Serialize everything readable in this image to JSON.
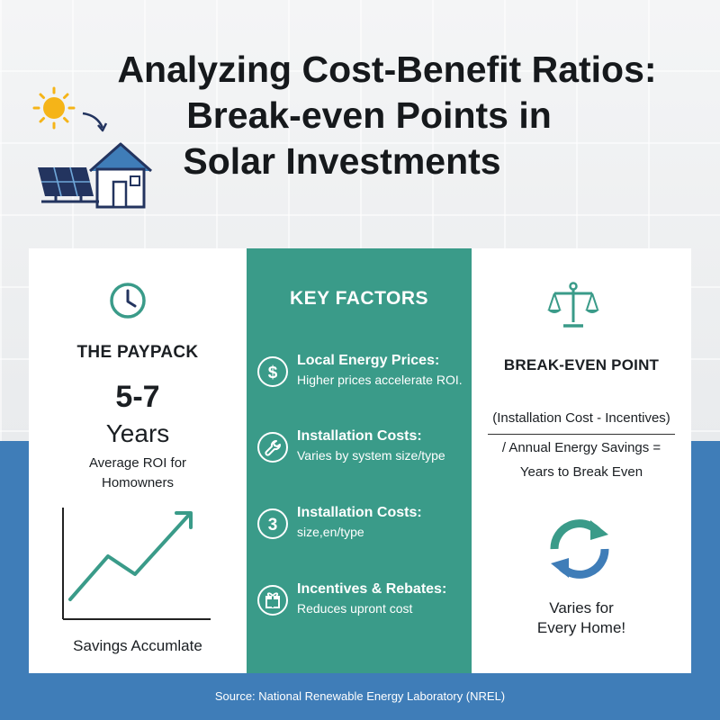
{
  "title": {
    "line1": "Analyzing Cost-Benefit Ratios:",
    "line2": "Break-even Points in",
    "line3": "Solar Investments"
  },
  "colors": {
    "teal": "#3a9b89",
    "blue": "#3f7db8",
    "sun": "#f5b418",
    "navy": "#23345f"
  },
  "left_panel": {
    "icon": "clock-icon",
    "heading": "THE PAYPACK",
    "value": "5-7",
    "unit": "Years",
    "roi_line1": "Average ROI for",
    "roi_line2": "Homowners",
    "chart_icon": "rising-line-chart",
    "chart_label": "Savings Accumlate"
  },
  "middle_panel": {
    "heading": "KEY FACTORS",
    "factors": [
      {
        "icon": "dollar-icon",
        "title": "Local Energy Prices:",
        "desc": "Higher prices accelerate ROI."
      },
      {
        "icon": "wrench-icon",
        "title": "Installation Costs:",
        "desc": "Varies by system size/type"
      },
      {
        "icon": "number-three-icon",
        "title": "Installation Costs:",
        "desc": "size,en/type"
      },
      {
        "icon": "gift-icon",
        "title": "Incentives & Rebates:",
        "desc": "Reduces upront cost"
      }
    ]
  },
  "right_panel": {
    "icon": "scales-icon",
    "heading": "BREAK-EVEN POINT",
    "formula_line1": "(Installation Cost - Incentives)",
    "formula_line2": "/ Annual Energy Savings =",
    "formula_line3": "Years to Break Even",
    "cycle_icon": "cycle-arrows-icon",
    "varies_line1": "Varies for",
    "varies_line2": "Every Home!"
  },
  "source": "Source: National Renewable Energy Laboratory (NREL)"
}
